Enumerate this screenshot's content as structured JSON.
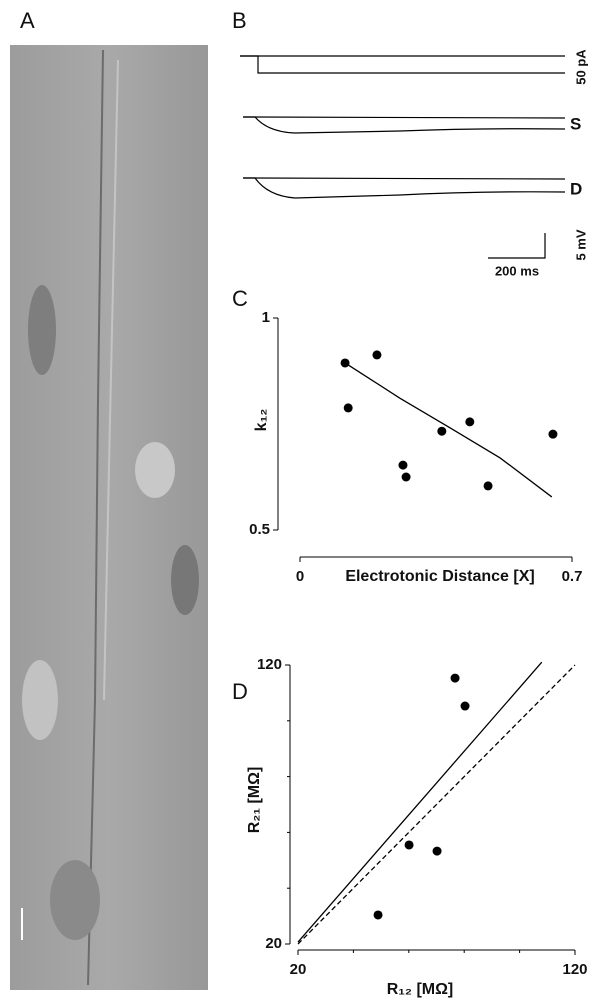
{
  "panel_a": {
    "label": "A"
  },
  "panel_b": {
    "label": "B",
    "current_label": "50 pA",
    "soma_label": "S",
    "dendrite_label": "D",
    "time_scale": "200 ms",
    "voltage_scale": "5 mV"
  },
  "chart_data": [
    {
      "type": "scatter",
      "label": "C",
      "xlabel": "Electrotonic Distance [X]",
      "ylabel": "k₁₂",
      "xlim": [
        0,
        0.7
      ],
      "ylim": [
        0.5,
        1
      ],
      "xticks": [
        0,
        0.7
      ],
      "yticks": [
        0.5,
        1
      ],
      "color": "#000000",
      "x": [
        0.116,
        0.124,
        0.198,
        0.265,
        0.273,
        0.365,
        0.437,
        0.484,
        0.651
      ],
      "values": [
        0.894,
        0.788,
        0.913,
        0.653,
        0.625,
        0.733,
        0.755,
        0.604,
        0.726
      ],
      "fits": [
        {
          "x": [
            0.116,
            0.257,
            0.386,
            0.515,
            0.648
          ],
          "values": [
            0.894,
            0.811,
            0.741,
            0.67,
            0.578
          ],
          "dashed": false
        }
      ]
    },
    {
      "type": "scatter",
      "label": "D",
      "xlabel": "R₁₂ [MΩ]",
      "ylabel": "R₂₁ [MΩ]",
      "xlim": [
        20,
        120
      ],
      "ylim": [
        20,
        120
      ],
      "xticks": [
        20,
        120
      ],
      "yticks": [
        20,
        120
      ],
      "xminorticks": [
        40,
        60,
        80,
        100
      ],
      "yminorticks": [
        40,
        60,
        80,
        100
      ],
      "color": "#000000",
      "x": [
        48.9,
        60.1,
        70.2,
        76.7,
        80.3
      ],
      "values": [
        30.4,
        55.5,
        53.3,
        115.3,
        105.3
      ],
      "fits": [
        {
          "x": [
            20,
            108
          ],
          "values": [
            20.7,
            121
          ],
          "dashed": false
        },
        {
          "x": [
            20,
            120
          ],
          "values": [
            20,
            120
          ],
          "dashed": true
        }
      ]
    }
  ]
}
